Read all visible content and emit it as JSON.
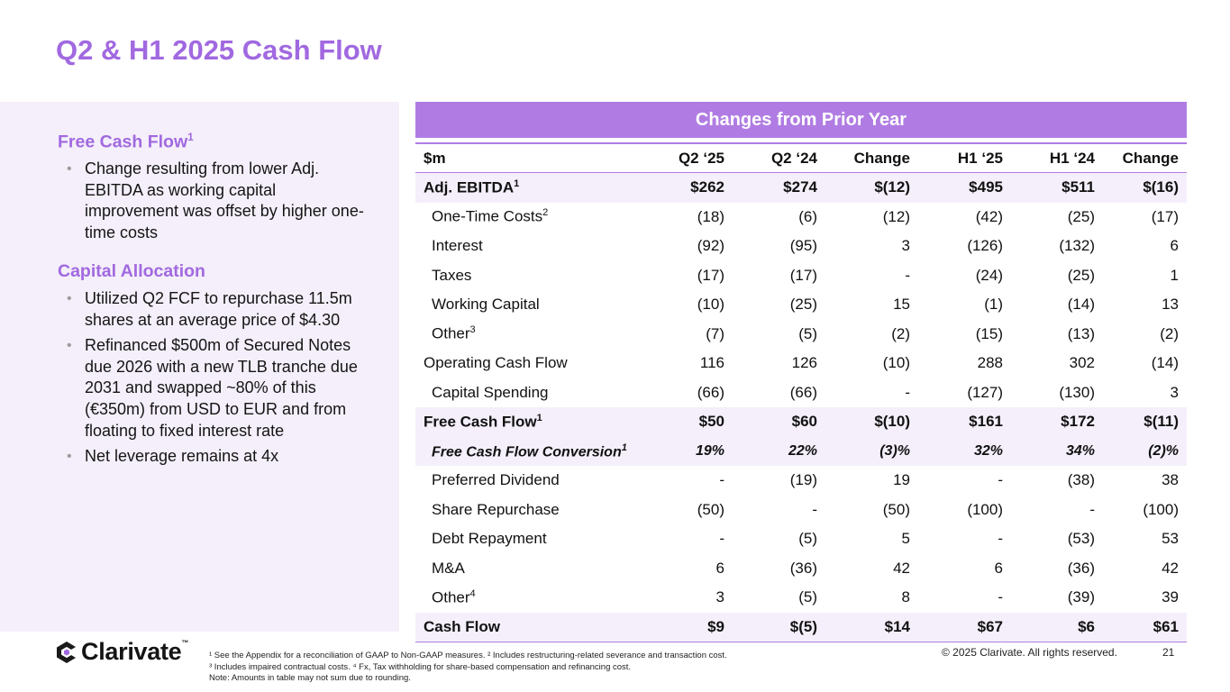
{
  "title": "Q2 & H1 2025 Cash Flow",
  "left": {
    "sections": [
      {
        "heading": "Free Cash Flow",
        "heading_sup": "1",
        "bullets": [
          "Change resulting from lower Adj. EBITDA as working capital improvement was offset by higher one-time costs"
        ]
      },
      {
        "heading": "Capital Allocation",
        "heading_sup": "",
        "bullets": [
          "Utilized Q2 FCF to repurchase 11.5m shares at an average price of $4.30",
          "Refinanced $500m of Secured Notes due 2026 with a new TLB tranche due 2031 and swapped ~80% of this (€350m) from USD to EUR and from floating to fixed interest rate",
          "Net leverage remains at 4x"
        ]
      }
    ]
  },
  "table": {
    "header": "Changes from Prior Year",
    "columns": [
      "$m",
      "Q2 ‘25",
      "Q2 ‘24",
      "Change",
      "H1 ‘25",
      "H1 ‘24",
      "Change"
    ],
    "rows": [
      {
        "label": "Adj. EBITDA",
        "sup": "1",
        "values": [
          "$262",
          "$274",
          "$(12)",
          "$495",
          "$511",
          "$(16)"
        ],
        "style": "bold shade",
        "indent": false
      },
      {
        "label": "One-Time Costs",
        "sup": "2",
        "values": [
          "(18)",
          "(6)",
          "(12)",
          "(42)",
          "(25)",
          "(17)"
        ],
        "style": "",
        "indent": true
      },
      {
        "label": "Interest",
        "sup": "",
        "values": [
          "(92)",
          "(95)",
          "3",
          "(126)",
          "(132)",
          "6"
        ],
        "style": "",
        "indent": true
      },
      {
        "label": "Taxes",
        "sup": "",
        "values": [
          "(17)",
          "(17)",
          "-",
          "(24)",
          "(25)",
          "1"
        ],
        "style": "",
        "indent": true
      },
      {
        "label": "Working Capital",
        "sup": "",
        "values": [
          "(10)",
          "(25)",
          "15",
          "(1)",
          "(14)",
          "13"
        ],
        "style": "",
        "indent": true
      },
      {
        "label": "Other",
        "sup": "3",
        "values": [
          "(7)",
          "(5)",
          "(2)",
          "(15)",
          "(13)",
          "(2)"
        ],
        "style": "",
        "indent": true
      },
      {
        "label": "Operating Cash Flow",
        "sup": "",
        "values": [
          "116",
          "126",
          "(10)",
          "288",
          "302",
          "(14)"
        ],
        "style": "",
        "indent": false
      },
      {
        "label": "Capital Spending",
        "sup": "",
        "values": [
          "(66)",
          "(66)",
          "-",
          "(127)",
          "(130)",
          "3"
        ],
        "style": "",
        "indent": true
      },
      {
        "label": "Free Cash Flow",
        "sup": "1",
        "values": [
          "$50",
          "$60",
          "$(10)",
          "$161",
          "$172",
          "$(11)"
        ],
        "style": "bold shade",
        "indent": false
      },
      {
        "label": "Free Cash Flow Conversion",
        "sup": "1",
        "values": [
          "19%",
          "22%",
          "(3)%",
          "32%",
          "34%",
          "(2)%"
        ],
        "style": "ital shade",
        "indent": true
      },
      {
        "label": "Preferred Dividend",
        "sup": "",
        "values": [
          "-",
          "(19)",
          "19",
          "-",
          "(38)",
          "38"
        ],
        "style": "",
        "indent": true
      },
      {
        "label": "Share Repurchase",
        "sup": "",
        "values": [
          "(50)",
          "-",
          "(50)",
          "(100)",
          "-",
          "(100)"
        ],
        "style": "",
        "indent": true
      },
      {
        "label": "Debt Repayment",
        "sup": "",
        "values": [
          "-",
          "(5)",
          "5",
          "-",
          "(53)",
          "53"
        ],
        "style": "",
        "indent": true
      },
      {
        "label": "M&A",
        "sup": "",
        "values": [
          "6",
          "(36)",
          "42",
          "6",
          "(36)",
          "42"
        ],
        "style": "",
        "indent": true
      },
      {
        "label": "Other",
        "sup": "4",
        "values": [
          "3",
          "(5)",
          "8",
          "-",
          "(39)",
          "39"
        ],
        "style": "",
        "indent": true
      },
      {
        "label": "Cash Flow",
        "sup": "",
        "values": [
          "$9",
          "$(5)",
          "$14",
          "$67",
          "$6",
          "$61"
        ],
        "style": "bold shade",
        "indent": false
      }
    ]
  },
  "footer": {
    "logo_text": "Clarivate",
    "logo_tm": "™",
    "notes": [
      "¹ See the Appendix for a reconciliation of GAAP to Non-GAAP measures.  ² Includes restructuring-related severance and transaction cost.",
      "³ Includes impaired contractual costs.  ⁴ Fx, Tax withholding for share-based compensation and refinancing cost.",
      "Note: Amounts in table may not sum due to rounding."
    ],
    "copyright": "© 2025 Clarivate. All rights reserved.",
    "page": "21"
  },
  "colors": {
    "accent": "#a169e0",
    "table_header": "#b07ce3",
    "panel_bg": "#f4effa"
  }
}
